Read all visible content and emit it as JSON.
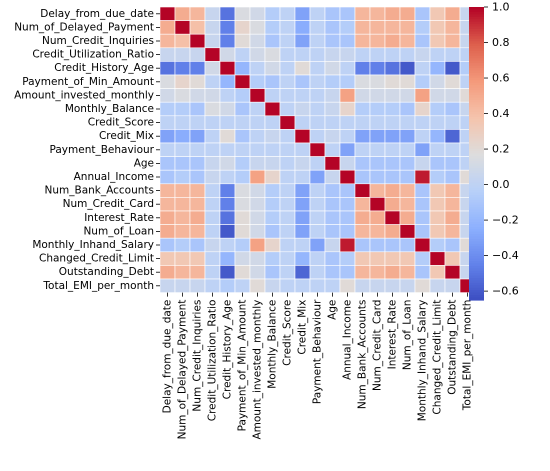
{
  "chart_data": {
    "type": "heatmap",
    "labels": [
      "Delay_from_due_date",
      "Num_of_Delayed_Payment",
      "Num_Credit_Inquiries",
      "Credit_Utilization_Ratio",
      "Credit_History_Age",
      "Payment_of_Min_Amount",
      "Amount_invested_monthly",
      "Monthly_Balance",
      "Credit_Score",
      "Credit_Mix",
      "Payment_Behaviour",
      "Age",
      "Annual_Income",
      "Num_Bank_Accounts",
      "Num_Credit_Card",
      "Interest_Rate",
      "Num_of_Loan",
      "Monthly_Inhand_Salary",
      "Changed_Credit_Limit",
      "Outstanding_Debt",
      "Total_EMI_per_month"
    ],
    "matrix": [
      [
        1.0,
        0.5,
        0.45,
        0.05,
        -0.5,
        0.15,
        0.1,
        -0.05,
        0.0,
        -0.3,
        0.0,
        -0.1,
        -0.1,
        0.45,
        0.45,
        0.5,
        0.5,
        -0.1,
        0.35,
        0.5,
        0.05
      ],
      [
        0.5,
        1.0,
        0.4,
        0.05,
        -0.45,
        0.25,
        0.15,
        -0.05,
        0.0,
        -0.25,
        0.0,
        -0.1,
        -0.05,
        0.45,
        0.45,
        0.45,
        0.45,
        -0.05,
        0.35,
        0.45,
        0.05
      ],
      [
        0.45,
        0.4,
        1.0,
        0.05,
        -0.45,
        0.2,
        0.1,
        -0.1,
        0.0,
        -0.3,
        0.0,
        -0.1,
        -0.1,
        0.45,
        0.45,
        0.5,
        0.45,
        -0.1,
        0.35,
        0.45,
        0.05
      ],
      [
        0.05,
        0.05,
        0.05,
        1.0,
        0.1,
        0.0,
        0.1,
        0.15,
        0.0,
        0.0,
        0.0,
        0.05,
        0.05,
        0.0,
        0.0,
        0.0,
        0.0,
        0.05,
        0.0,
        0.0,
        0.0
      ],
      [
        -0.5,
        -0.45,
        -0.45,
        0.1,
        1.0,
        -0.2,
        0.0,
        0.1,
        0.0,
        0.2,
        0.0,
        0.1,
        0.0,
        -0.45,
        -0.45,
        -0.5,
        -0.6,
        0.0,
        -0.2,
        -0.6,
        -0.05
      ],
      [
        0.15,
        0.25,
        0.2,
        0.0,
        -0.2,
        1.0,
        -0.05,
        -0.1,
        0.0,
        -0.1,
        0.0,
        -0.05,
        -0.05,
        0.15,
        0.15,
        0.2,
        0.2,
        -0.05,
        0.1,
        0.2,
        0.0
      ],
      [
        0.1,
        0.15,
        0.1,
        0.1,
        0.0,
        -0.05,
        1.0,
        0.0,
        0.0,
        0.0,
        0.0,
        0.05,
        0.55,
        0.1,
        0.1,
        0.1,
        0.1,
        0.55,
        0.1,
        0.1,
        0.2
      ],
      [
        -0.05,
        -0.05,
        -0.1,
        0.15,
        0.1,
        -0.1,
        0.0,
        1.0,
        0.0,
        0.05,
        0.0,
        0.05,
        0.25,
        -0.05,
        -0.05,
        -0.05,
        -0.1,
        0.25,
        -0.05,
        -0.1,
        0.05
      ],
      [
        0.0,
        0.0,
        0.0,
        0.0,
        0.0,
        0.0,
        0.0,
        0.0,
        1.0,
        0.0,
        0.0,
        0.0,
        0.0,
        0.0,
        0.0,
        0.0,
        0.0,
        0.0,
        0.0,
        0.0,
        0.0
      ],
      [
        -0.3,
        -0.25,
        -0.3,
        0.0,
        0.2,
        -0.1,
        0.0,
        0.05,
        0.0,
        1.0,
        0.0,
        0.05,
        0.0,
        -0.3,
        -0.3,
        -0.3,
        -0.3,
        0.0,
        -0.2,
        -0.55,
        0.0
      ],
      [
        0.0,
        0.0,
        0.0,
        0.0,
        0.0,
        0.0,
        0.0,
        0.0,
        0.0,
        0.0,
        1.0,
        0.0,
        -0.3,
        0.0,
        0.0,
        0.0,
        0.0,
        -0.3,
        0.0,
        0.0,
        0.0
      ],
      [
        -0.1,
        -0.1,
        -0.1,
        0.05,
        0.1,
        -0.05,
        0.05,
        0.05,
        0.0,
        0.05,
        0.0,
        1.0,
        0.05,
        -0.1,
        -0.1,
        -0.1,
        -0.1,
        0.05,
        -0.1,
        -0.1,
        0.0
      ],
      [
        -0.1,
        -0.05,
        -0.1,
        0.05,
        0.0,
        -0.05,
        0.55,
        0.25,
        0.0,
        0.0,
        -0.3,
        0.05,
        1.0,
        -0.1,
        -0.1,
        -0.1,
        -0.1,
        0.95,
        -0.05,
        -0.1,
        0.2
      ],
      [
        0.45,
        0.45,
        0.45,
        0.0,
        -0.45,
        0.15,
        0.1,
        -0.05,
        0.0,
        -0.3,
        0.0,
        -0.1,
        -0.1,
        1.0,
        0.45,
        0.5,
        0.45,
        -0.1,
        0.35,
        0.45,
        0.05
      ],
      [
        0.45,
        0.45,
        0.45,
        0.0,
        -0.45,
        0.15,
        0.1,
        -0.05,
        0.0,
        -0.3,
        0.0,
        -0.1,
        -0.1,
        0.45,
        1.0,
        0.5,
        0.45,
        -0.1,
        0.35,
        0.45,
        0.05
      ],
      [
        0.5,
        0.45,
        0.5,
        0.0,
        -0.5,
        0.2,
        0.1,
        -0.05,
        0.0,
        -0.3,
        0.0,
        -0.1,
        -0.1,
        0.5,
        0.5,
        1.0,
        0.5,
        -0.1,
        0.35,
        0.5,
        0.05
      ],
      [
        0.5,
        0.45,
        0.45,
        0.0,
        -0.6,
        0.2,
        0.1,
        -0.1,
        0.0,
        -0.3,
        0.0,
        -0.1,
        -0.1,
        0.45,
        0.45,
        0.5,
        1.0,
        -0.1,
        0.35,
        0.45,
        0.05
      ],
      [
        -0.1,
        -0.05,
        -0.1,
        0.05,
        0.0,
        -0.05,
        0.55,
        0.25,
        0.0,
        0.0,
        -0.3,
        0.05,
        0.95,
        -0.1,
        -0.1,
        -0.1,
        -0.1,
        1.0,
        -0.05,
        -0.1,
        0.2
      ],
      [
        0.35,
        0.35,
        0.35,
        0.0,
        -0.2,
        0.1,
        0.1,
        -0.05,
        0.0,
        -0.2,
        0.0,
        -0.1,
        -0.05,
        0.35,
        0.35,
        0.35,
        0.35,
        -0.05,
        1.0,
        0.35,
        0.05
      ],
      [
        0.5,
        0.45,
        0.45,
        0.0,
        -0.6,
        0.2,
        0.1,
        -0.1,
        0.0,
        -0.55,
        0.0,
        -0.1,
        -0.1,
        0.45,
        0.45,
        0.5,
        0.45,
        -0.1,
        0.35,
        1.0,
        0.05
      ],
      [
        0.05,
        0.05,
        0.05,
        0.0,
        -0.05,
        0.0,
        0.2,
        0.05,
        0.0,
        0.0,
        0.0,
        0.0,
        0.2,
        0.05,
        0.05,
        0.05,
        0.05,
        0.2,
        0.05,
        0.05,
        1.0
      ]
    ],
    "colorbar": {
      "colormap": "coolwarm",
      "vmin": -0.65,
      "vmax": 1.0,
      "ticks": [
        -0.6,
        -0.4,
        -0.2,
        0.0,
        0.2,
        0.4,
        0.6,
        0.8,
        1.0
      ],
      "tick_labels": [
        "−0.6",
        "−0.4",
        "−0.2",
        "0.0",
        "0.2",
        "0.4",
        "0.6",
        "0.8",
        "1.0"
      ]
    },
    "grid": true,
    "cell_border_color": "#ffffff",
    "title": "",
    "xlabel": "",
    "ylabel": ""
  }
}
